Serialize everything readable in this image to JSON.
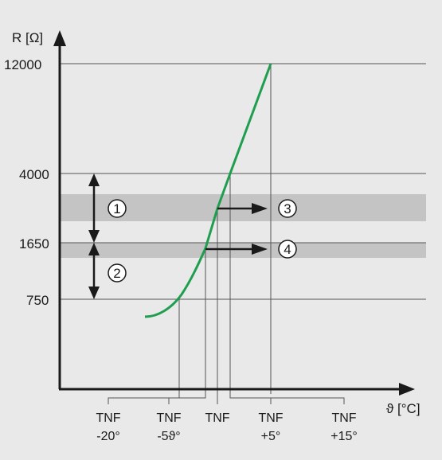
{
  "diagram": {
    "y_axis": {
      "label": "R [Ω]"
    },
    "x_axis": {
      "label": "ϑ [°C]"
    },
    "y_ticks": [
      "12000",
      "4000",
      "1650",
      "750"
    ],
    "x_ticks": [
      {
        "line1": "TNF",
        "line2": "-20°"
      },
      {
        "line1": "TNF",
        "line2": "-5ϑ°"
      },
      {
        "line1": "TNF",
        "line2": ""
      },
      {
        "line1": "TNF",
        "line2": "+5°"
      },
      {
        "line1": "TNF",
        "line2": "+15°"
      }
    ],
    "markers": [
      "1",
      "2",
      "3",
      "4"
    ],
    "colors": {
      "background": "#e9e9e9",
      "band": "#c4c4c4",
      "curve": "#1f9e4f",
      "axis": "#1a1a1a",
      "grid": "#555555"
    }
  }
}
